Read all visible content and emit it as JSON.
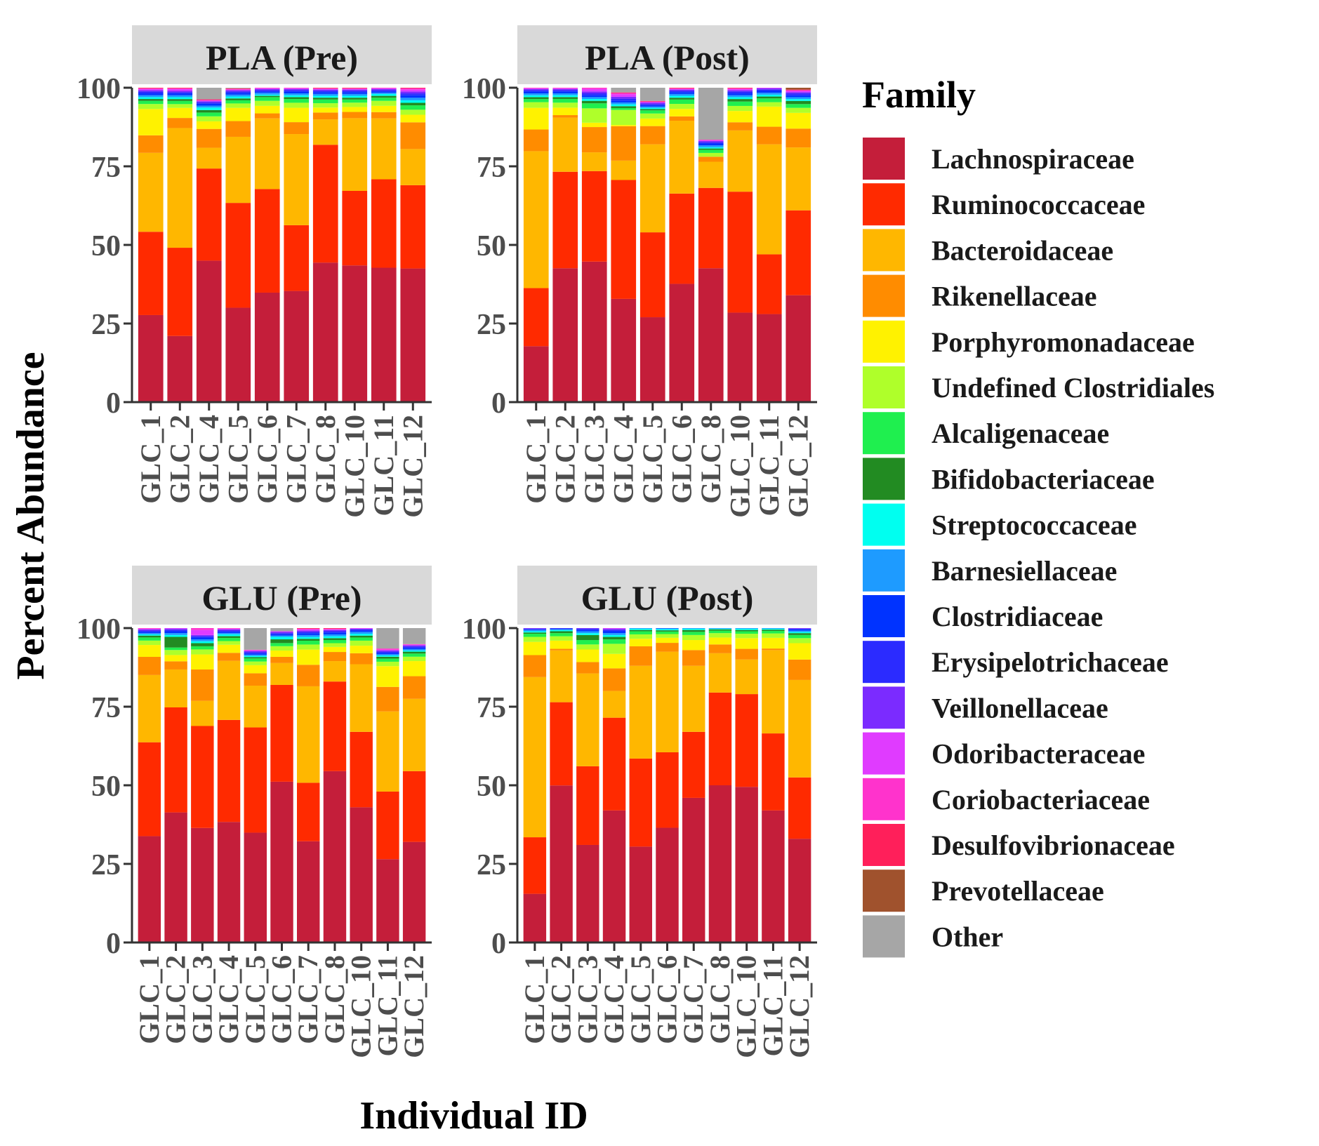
{
  "chart_data": {
    "type": "bar",
    "stacked": true,
    "facet_layout": "2x2",
    "ylabel": "Percent Abundance",
    "xlabel": "Individual ID",
    "ylim": [
      0,
      100
    ],
    "yticks": [
      0,
      25,
      50,
      75,
      100
    ],
    "legend": {
      "title": "Family",
      "placement": "right",
      "entries": [
        {
          "name": "Lachnospiraceae",
          "color": "#C41E3A"
        },
        {
          "name": "Ruminococcaceae",
          "color": "#FF2A00"
        },
        {
          "name": "Bacteroidaceae",
          "color": "#FFB700"
        },
        {
          "name": "Rikenellaceae",
          "color": "#FF8C00"
        },
        {
          "name": "Porphyromonadaceae",
          "color": "#FFF200"
        },
        {
          "name": "Undefined Clostridiales",
          "color": "#AFFF2A"
        },
        {
          "name": "Alcaligenaceae",
          "color": "#1FEF4F"
        },
        {
          "name": "Bifidobacteriaceae",
          "color": "#228B22"
        },
        {
          "name": "Streptococcaceae",
          "color": "#00FFF0"
        },
        {
          "name": "Barnesiellaceae",
          "color": "#1E9BFF"
        },
        {
          "name": "Clostridiaceae",
          "color": "#0033FF"
        },
        {
          "name": "Erysipelotrichaceae",
          "color": "#2B2BFF"
        },
        {
          "name": "Veillonellaceae",
          "color": "#7B2BFF"
        },
        {
          "name": "Odoribacteraceae",
          "color": "#E03BFF"
        },
        {
          "name": "Coriobacteriaceae",
          "color": "#FF33CC"
        },
        {
          "name": "Desulfovibrionaceae",
          "color": "#FF1F5A"
        },
        {
          "name": "Prevotellaceae",
          "color": "#A0522D"
        },
        {
          "name": "Other",
          "color": "#A6A6A6"
        }
      ]
    },
    "facets": [
      {
        "title": "PLA (Pre)",
        "categories": [
          "GLC_1",
          "GLC_2",
          "GLC_4",
          "GLC_5",
          "GLC_6",
          "GLC_7",
          "GLC_8",
          "GLC_10",
          "GLC_11",
          "GLC_12"
        ],
        "values": [
          [
            27.8,
            26.6,
            25.2,
            5.6,
            8.4,
            1.6,
            1.0,
            0.6,
            0.6,
            0.6,
            0.6,
            0.6,
            0.4,
            0.4,
            0.2,
            0.2,
            0.0,
            0.0
          ],
          [
            21.0,
            28.0,
            38.0,
            3.2,
            3.2,
            1.2,
            1.0,
            0.6,
            0.6,
            0.6,
            0.6,
            0.4,
            0.4,
            0.6,
            0.2,
            0.2,
            0.0,
            0.0
          ],
          [
            45.0,
            29.3,
            6.6,
            6.0,
            2.4,
            1.6,
            1.2,
            0.8,
            0.8,
            0.6,
            0.6,
            0.4,
            0.4,
            0.2,
            0.2,
            0.2,
            0.0,
            3.7
          ],
          [
            30.0,
            33.3,
            21.0,
            5.0,
            4.2,
            1.4,
            1.0,
            0.6,
            0.6,
            0.6,
            0.6,
            0.4,
            0.4,
            0.2,
            0.2,
            0.2,
            0.0,
            0.2
          ],
          [
            35.0,
            33.1,
            22.6,
            1.6,
            2.4,
            1.6,
            1.2,
            0.4,
            0.4,
            0.6,
            0.4,
            0.4,
            0.4,
            0.2,
            0.2,
            0.0,
            0.0,
            0.0
          ],
          [
            35.5,
            21.0,
            29.1,
            3.8,
            4.6,
            1.6,
            1.2,
            0.6,
            0.6,
            0.6,
            0.6,
            0.4,
            0.4,
            0.2,
            0.2,
            0.0,
            0.0,
            0.0
          ],
          [
            45.0,
            38.0,
            8.2,
            2.2,
            1.6,
            1.4,
            1.2,
            0.6,
            0.6,
            0.6,
            0.6,
            0.4,
            0.4,
            0.2,
            0.2,
            0.2,
            0.0,
            0.0
          ],
          [
            44.0,
            24.0,
            23.4,
            2.0,
            1.6,
            1.4,
            1.0,
            0.6,
            0.6,
            0.6,
            0.6,
            0.4,
            0.4,
            0.2,
            0.2,
            0.2,
            0.0,
            0.0
          ],
          [
            43.0,
            28.3,
            19.5,
            2.0,
            2.0,
            1.6,
            1.0,
            0.6,
            0.6,
            0.4,
            0.4,
            0.4,
            0.4,
            0.2,
            0.2,
            0.0,
            0.0,
            0.0
          ],
          [
            42.5,
            26.5,
            11.5,
            8.5,
            2.4,
            1.6,
            1.4,
            0.8,
            0.8,
            0.8,
            0.8,
            0.6,
            0.6,
            0.6,
            0.4,
            0.2,
            0.0,
            0.0
          ]
        ]
      },
      {
        "title": "PLA (Post)",
        "categories": [
          "GLC_1",
          "GLC_2",
          "GLC_3",
          "GLC_4",
          "GLC_5",
          "GLC_6",
          "GLC_8",
          "GLC_10",
          "GLC_11",
          "GLC_12"
        ],
        "values": [
          [
            17.8,
            18.5,
            43.6,
            6.9,
            6.9,
            1.8,
            1.0,
            0.6,
            0.6,
            0.6,
            0.6,
            0.4,
            0.4,
            0.2,
            0.2,
            0.0,
            0.0,
            0.0
          ],
          [
            43.0,
            31.0,
            17.4,
            0.8,
            2.4,
            1.6,
            1.2,
            0.6,
            0.6,
            0.6,
            0.6,
            0.4,
            0.4,
            0.2,
            0.2,
            0.0,
            0.0,
            0.0
          ],
          [
            45.0,
            29.0,
            6.0,
            8.1,
            1.4,
            4.6,
            1.6,
            0.8,
            0.6,
            0.6,
            0.6,
            0.6,
            0.6,
            0.8,
            0.4,
            0.0,
            0.0,
            0.0
          ],
          [
            33.0,
            38.0,
            6.2,
            11.0,
            0.4,
            4.8,
            0.6,
            0.6,
            0.6,
            0.6,
            0.6,
            0.6,
            0.6,
            0.8,
            0.4,
            0.2,
            0.0,
            1.5
          ],
          [
            27.0,
            27.0,
            28.0,
            5.8,
            2.4,
            1.6,
            1.0,
            0.4,
            0.4,
            0.4,
            0.4,
            0.4,
            0.4,
            0.2,
            0.2,
            0.2,
            0.0,
            4.2
          ],
          [
            38.0,
            29.0,
            23.4,
            1.4,
            2.4,
            1.6,
            1.4,
            0.6,
            0.6,
            0.6,
            0.6,
            0.4,
            0.4,
            0.2,
            0.2,
            0.2,
            0.0,
            0.0
          ],
          [
            42.5,
            25.5,
            8.3,
            1.6,
            0.0,
            1.2,
            1.0,
            0.4,
            0.4,
            0.6,
            0.6,
            0.4,
            0.4,
            0.2,
            0.2,
            0.0,
            0.0,
            16.5
          ],
          [
            28.5,
            38.5,
            19.5,
            2.6,
            3.6,
            1.6,
            1.4,
            0.8,
            0.6,
            0.6,
            0.6,
            0.6,
            0.4,
            0.4,
            0.2,
            0.2,
            0.0,
            0.0
          ],
          [
            28.0,
            19.0,
            35.0,
            5.6,
            6.4,
            1.4,
            1.2,
            0.6,
            0.6,
            0.6,
            0.6,
            0.4,
            0.4,
            0.2,
            0.0,
            0.0,
            0.0,
            0.0
          ],
          [
            34.0,
            27.0,
            20.0,
            6.0,
            5.0,
            1.6,
            1.2,
            1.0,
            0.6,
            0.6,
            0.6,
            0.6,
            0.4,
            0.4,
            0.2,
            0.2,
            0.6,
            0.0
          ]
        ]
      },
      {
        "title": "GLU (Pre)",
        "categories": [
          "GLC_1",
          "GLC_2",
          "GLC_3",
          "GLC_4",
          "GLC_5",
          "GLC_6",
          "GLC_7",
          "GLC_8",
          "GLC_10",
          "GLC_11",
          "GLC_12"
        ],
        "values": [
          [
            34.0,
            30.0,
            21.5,
            5.8,
            3.8,
            1.4,
            1.0,
            0.6,
            0.4,
            0.4,
            0.4,
            0.4,
            0.4,
            0.2,
            0.2,
            0.0,
            0.0,
            0.0
          ],
          [
            41.5,
            33.5,
            12.1,
            2.6,
            2.0,
            1.6,
            0.8,
            3.4,
            0.6,
            0.6,
            0.6,
            0.4,
            0.4,
            0.2,
            0.0,
            0.0,
            0.0,
            0.0
          ],
          [
            36.5,
            32.5,
            8.0,
            10.0,
            4.8,
            1.6,
            1.0,
            1.0,
            0.6,
            0.6,
            0.6,
            0.4,
            0.4,
            1.6,
            0.6,
            0.0,
            0.0,
            0.0
          ],
          [
            39.0,
            33.0,
            19.1,
            2.6,
            2.6,
            1.2,
            1.0,
            0.6,
            0.6,
            0.4,
            0.4,
            0.4,
            0.4,
            0.2,
            0.2,
            0.0,
            0.0,
            0.0
          ],
          [
            35.5,
            34.0,
            13.5,
            4.0,
            2.6,
            1.2,
            1.0,
            0.4,
            0.4,
            0.4,
            0.4,
            0.4,
            0.4,
            0.2,
            0.2,
            0.0,
            0.0,
            7.0
          ],
          [
            51.5,
            31.0,
            7.0,
            2.0,
            2.0,
            1.4,
            1.0,
            1.2,
            0.8,
            0.4,
            0.4,
            0.4,
            0.4,
            0.2,
            0.0,
            0.0,
            0.0,
            1.0
          ],
          [
            32.0,
            18.5,
            30.5,
            6.8,
            4.8,
            1.6,
            1.2,
            0.6,
            0.6,
            0.6,
            0.6,
            0.4,
            0.4,
            0.4,
            0.2,
            0.2,
            0.0,
            0.0
          ],
          [
            54.5,
            28.5,
            6.5,
            2.9,
            1.6,
            1.2,
            1.0,
            0.6,
            0.6,
            0.6,
            0.6,
            0.4,
            0.4,
            0.2,
            0.2,
            0.2,
            0.0,
            0.0
          ],
          [
            43.0,
            24.0,
            21.5,
            3.5,
            2.4,
            1.6,
            1.0,
            0.6,
            0.6,
            0.6,
            0.4,
            0.4,
            0.2,
            0.2,
            0.0,
            0.0,
            0.0,
            0.0
          ],
          [
            26.5,
            21.5,
            25.5,
            7.8,
            6.6,
            1.4,
            1.0,
            0.6,
            0.4,
            0.4,
            0.4,
            0.4,
            0.4,
            0.2,
            0.4,
            0.0,
            0.0,
            6.5
          ],
          [
            32.0,
            22.5,
            23.0,
            7.2,
            4.8,
            1.4,
            1.0,
            0.6,
            0.4,
            0.4,
            0.4,
            0.4,
            0.4,
            0.2,
            0.2,
            0.0,
            0.0,
            5.1
          ]
        ]
      },
      {
        "title": "GLU (Post)",
        "categories": [
          "GLC_1",
          "GLC_2",
          "GLC_3",
          "GLC_4",
          "GLC_5",
          "GLC_6",
          "GLC_7",
          "GLC_8",
          "GLC_10",
          "GLC_11",
          "GLC_12"
        ],
        "values": [
          [
            15.5,
            18.0,
            51.0,
            7.0,
            4.2,
            1.6,
            1.0,
            0.4,
            0.4,
            0.4,
            0.2,
            0.2,
            0.2,
            0.0,
            0.0,
            0.0,
            0.0,
            0.0
          ],
          [
            50.0,
            26.5,
            16.5,
            0.5,
            2.6,
            1.4,
            1.0,
            0.6,
            0.4,
            0.2,
            0.2,
            0.2,
            0.0,
            0.0,
            0.0,
            0.0,
            0.0,
            0.0
          ],
          [
            31.0,
            25.0,
            29.5,
            3.6,
            4.0,
            1.6,
            1.4,
            1.6,
            0.6,
            0.6,
            0.4,
            0.4,
            0.2,
            0.0,
            0.0,
            0.0,
            0.0,
            0.0
          ],
          [
            42.0,
            29.5,
            8.5,
            7.2,
            4.6,
            3.2,
            1.4,
            0.8,
            0.6,
            0.6,
            0.6,
            0.4,
            0.4,
            0.2,
            0.0,
            0.0,
            0.0,
            0.0
          ],
          [
            30.5,
            28.0,
            29.5,
            6.2,
            2.4,
            1.4,
            1.0,
            0.4,
            0.4,
            0.2,
            0.0,
            0.0,
            0.0,
            0.0,
            0.0,
            0.0,
            0.0,
            0.0
          ],
          [
            36.5,
            24.0,
            32.0,
            2.8,
            1.6,
            1.2,
            0.8,
            0.4,
            0.4,
            0.2,
            0.1,
            0.0,
            0.0,
            0.0,
            0.0,
            0.0,
            0.0,
            0.0
          ],
          [
            46.0,
            21.0,
            21.0,
            5.0,
            3.2,
            1.6,
            1.0,
            0.6,
            0.4,
            0.2,
            0.0,
            0.0,
            0.0,
            0.0,
            0.0,
            0.0,
            0.0,
            0.0
          ],
          [
            50.0,
            29.5,
            12.5,
            2.8,
            2.2,
            1.4,
            0.8,
            0.4,
            0.2,
            0.2,
            0.0,
            0.0,
            0.0,
            0.0,
            0.0,
            0.0,
            0.0,
            0.0
          ],
          [
            49.5,
            29.5,
            11.0,
            3.4,
            3.4,
            1.4,
            0.8,
            0.4,
            0.4,
            0.2,
            0.0,
            0.0,
            0.0,
            0.0,
            0.0,
            0.0,
            0.0,
            0.0
          ],
          [
            42.0,
            24.5,
            26.5,
            0.5,
            3.4,
            1.4,
            0.8,
            0.4,
            0.3,
            0.2,
            0.0,
            0.0,
            0.0,
            0.0,
            0.0,
            0.0,
            0.0,
            0.0
          ],
          [
            33.0,
            19.5,
            31.0,
            6.5,
            5.2,
            1.6,
            1.0,
            0.6,
            0.4,
            0.4,
            0.4,
            0.2,
            0.2,
            0.0,
            0.0,
            0.0,
            0.0,
            0.0
          ]
        ]
      }
    ]
  }
}
